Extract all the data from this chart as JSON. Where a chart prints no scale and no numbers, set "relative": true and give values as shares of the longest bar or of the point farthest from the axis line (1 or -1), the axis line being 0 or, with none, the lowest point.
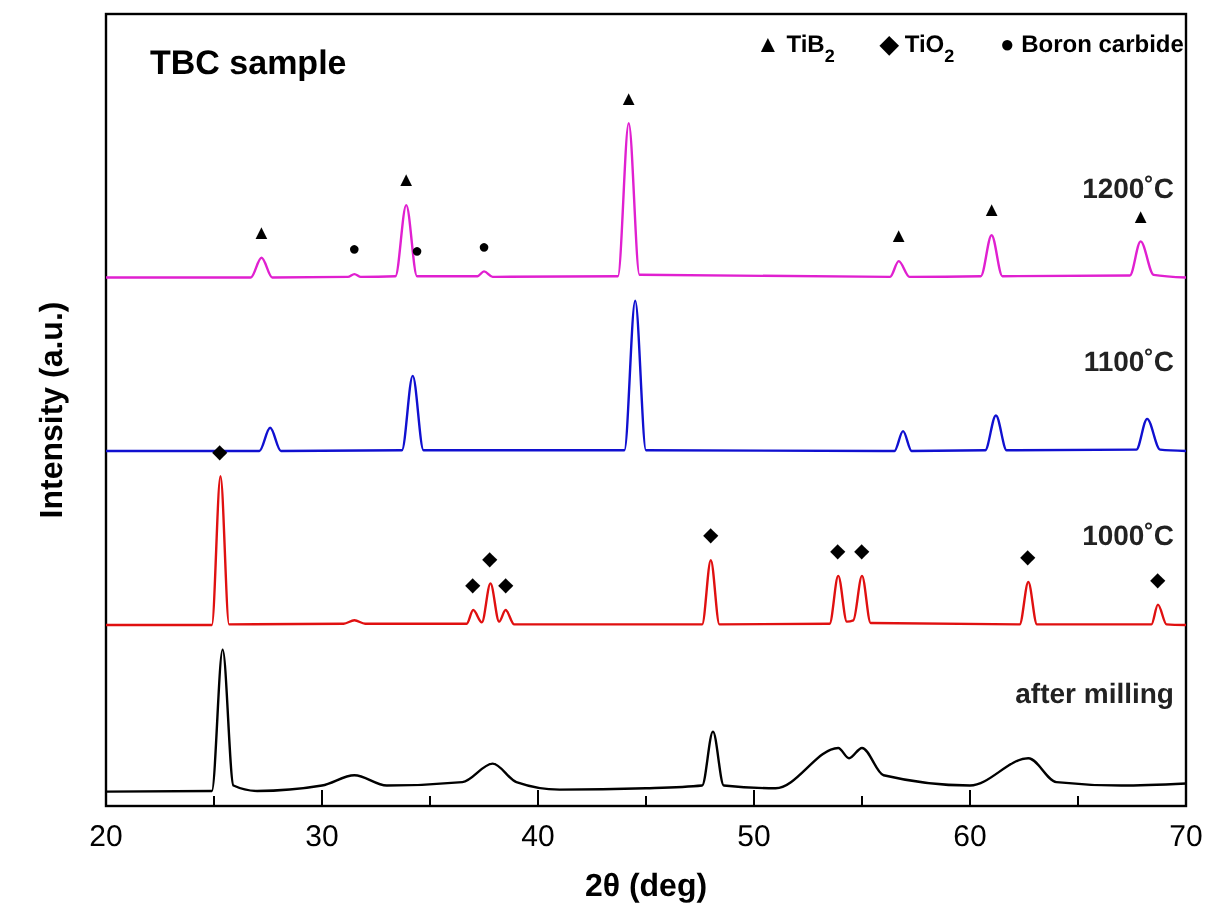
{
  "chart_data": {
    "type": "line",
    "title": "TBC sample",
    "xlabel": "2θ (deg)",
    "ylabel": "Intensity (a.u.)",
    "relative": true,
    "xlim": [
      20,
      70
    ],
    "xticks": [
      20,
      30,
      40,
      50,
      60,
      70
    ],
    "grid": false,
    "line_style": "solid",
    "series": [
      {
        "name": "1200˚C",
        "color": "#e020d0",
        "x": [
          20,
          26.7,
          27.2,
          27.7,
          31.2,
          31.5,
          31.8,
          33.4,
          33.9,
          34.4,
          37.2,
          37.5,
          37.9,
          43.7,
          44.2,
          44.7,
          56.3,
          56.7,
          57.2,
          60.5,
          61.0,
          61.5,
          67.4,
          67.9,
          68.5,
          70
        ],
        "values": [
          0.774,
          0.774,
          0.803,
          0.774,
          0.775,
          0.779,
          0.775,
          0.776,
          0.88,
          0.776,
          0.776,
          0.783,
          0.775,
          0.776,
          1.0,
          0.778,
          0.775,
          0.798,
          0.775,
          0.776,
          0.836,
          0.776,
          0.777,
          0.827,
          0.778,
          0.774
        ]
      },
      {
        "name": "1100˚C",
        "color": "#1010d0",
        "x": [
          20,
          27.1,
          27.6,
          28.1,
          33.7,
          34.2,
          34.7,
          44.0,
          44.5,
          45.0,
          56.5,
          56.9,
          57.3,
          60.7,
          61.2,
          61.7,
          67.7,
          68.2,
          68.8,
          70
        ],
        "values": [
          0.52,
          0.52,
          0.554,
          0.52,
          0.521,
          0.63,
          0.521,
          0.521,
          0.74,
          0.521,
          0.52,
          0.549,
          0.52,
          0.521,
          0.572,
          0.521,
          0.522,
          0.567,
          0.522,
          0.52
        ]
      },
      {
        "name": "1000˚C",
        "color": "#e01010",
        "x": [
          20,
          24.9,
          25.3,
          25.7,
          31.0,
          31.5,
          32.0,
          36.7,
          37.0,
          37.4,
          37.8,
          38.2,
          38.5,
          38.9,
          47.6,
          48.0,
          48.4,
          53.5,
          53.9,
          54.3,
          54.6,
          55.0,
          55.4,
          62.3,
          62.7,
          63.1,
          68.4,
          68.7,
          69.1,
          70
        ],
        "values": [
          0.265,
          0.265,
          0.483,
          0.266,
          0.267,
          0.272,
          0.267,
          0.267,
          0.287,
          0.269,
          0.326,
          0.27,
          0.287,
          0.266,
          0.266,
          0.36,
          0.266,
          0.267,
          0.337,
          0.27,
          0.272,
          0.337,
          0.268,
          0.266,
          0.328,
          0.266,
          0.266,
          0.295,
          0.266,
          0.265
        ]
      },
      {
        "name": "after milling",
        "color": "#000000",
        "x": [
          20,
          24.9,
          25.4,
          25.9,
          27,
          30,
          31.5,
          33,
          36.5,
          37.9,
          39,
          41,
          45,
          47.6,
          48.1,
          48.6,
          51,
          53.9,
          54.4,
          55.0,
          56,
          60,
          62.7,
          64,
          67,
          70
        ],
        "values": [
          0.021,
          0.022,
          0.229,
          0.03,
          0.022,
          0.03,
          0.045,
          0.03,
          0.035,
          0.062,
          0.035,
          0.024,
          0.026,
          0.03,
          0.109,
          0.03,
          0.026,
          0.085,
          0.07,
          0.085,
          0.045,
          0.03,
          0.07,
          0.035,
          0.03,
          0.033
        ]
      }
    ],
    "annotations": [
      {
        "text": "▲",
        "x": 27.2,
        "y": 0.803
      },
      {
        "text": "▲",
        "x": 33.9,
        "y": 0.88
      },
      {
        "text": "▲",
        "x": 44.2,
        "y": 1.0
      },
      {
        "text": "▲",
        "x": 56.7,
        "y": 0.798
      },
      {
        "text": "▲",
        "x": 61.0,
        "y": 0.836
      },
      {
        "text": "▲",
        "x": 67.9,
        "y": 0.827
      },
      {
        "text": "●",
        "x": 31.5,
        "y": 0.779
      },
      {
        "text": "●",
        "x": 34.4,
        "y": 0.776
      },
      {
        "text": "●",
        "x": 37.5,
        "y": 0.783
      },
      {
        "text": "◆",
        "x": 25.3,
        "y": 0.483
      },
      {
        "text": "◆",
        "x": 37.0,
        "y": 0.287
      },
      {
        "text": "◆",
        "x": 37.8,
        "y": 0.326
      },
      {
        "text": "◆",
        "x": 38.5,
        "y": 0.287
      },
      {
        "text": "◆",
        "x": 48.0,
        "y": 0.36
      },
      {
        "text": "◆",
        "x": 53.9,
        "y": 0.337
      },
      {
        "text": "◆",
        "x": 55.0,
        "y": 0.337
      },
      {
        "text": "◆",
        "x": 62.7,
        "y": 0.328
      },
      {
        "text": "◆",
        "x": 68.7,
        "y": 0.295
      },
      "▲ TiB$_{2}$",
      "◆ TiO$_{2}$",
      "● Boron carbide"
    ]
  }
}
